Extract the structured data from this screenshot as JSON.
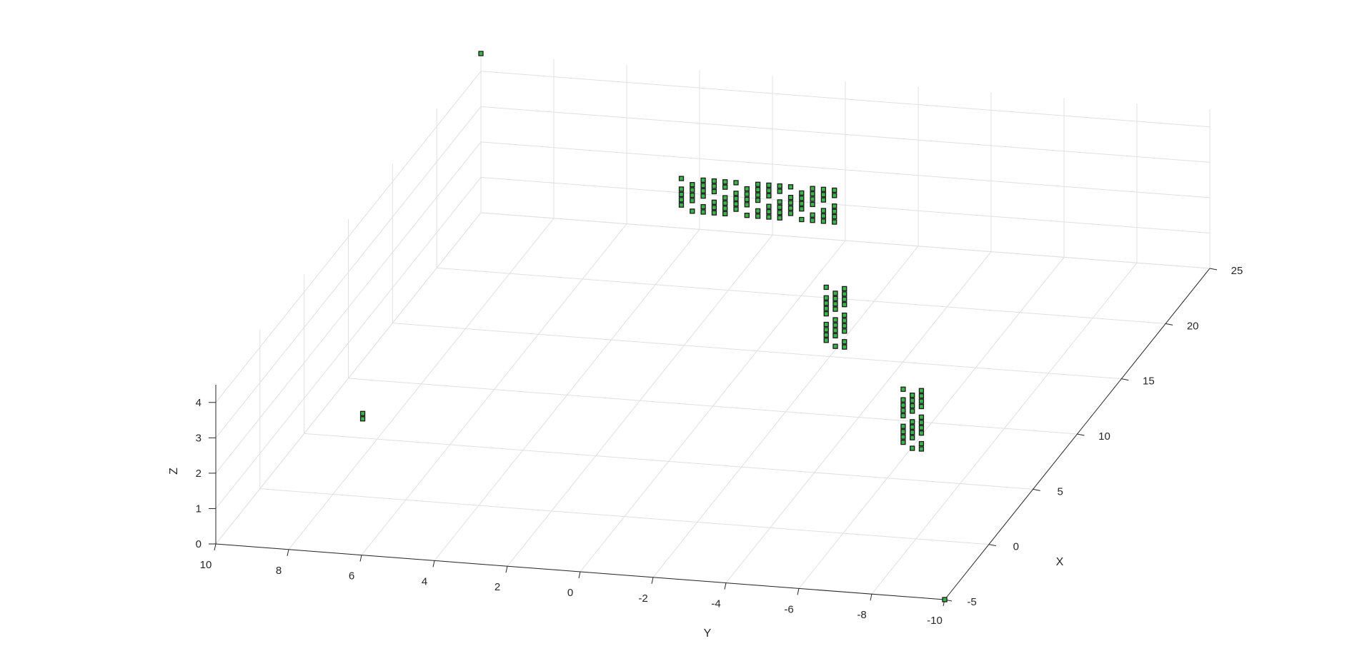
{
  "chart_data": {
    "type": "scatter",
    "subtype": "3d-voxel-scatter",
    "xlabel": "X",
    "ylabel": "Y",
    "zlabel": "Z",
    "xlim": [
      -5,
      25
    ],
    "ylim": [
      -10,
      10
    ],
    "zlim": [
      0,
      4.5
    ],
    "x_ticks": [
      "-5",
      "0",
      "5",
      "10",
      "15",
      "20",
      "25"
    ],
    "y_ticks": [
      "10",
      "8",
      "6",
      "4",
      "2",
      "0",
      "-2",
      "-4",
      "-6",
      "-8",
      "-10"
    ],
    "z_ticks": [
      "0",
      "1",
      "2",
      "3",
      "4"
    ],
    "grid": true,
    "marker": {
      "fill": "#3cb44b",
      "edge": "#1a1a1a",
      "shape": "square"
    },
    "clusters": [
      {
        "x": 25,
        "y": 4.5,
        "z": 0.5,
        "cols": [
          0,
          0.3,
          0.6,
          0.9,
          1.2,
          1.5,
          1.8,
          2.1,
          2.4,
          2.7,
          3.0,
          3.3,
          3.6,
          3.9,
          4.2
        ],
        "zmin": 0.0,
        "zmax": 0.9
      },
      {
        "x": 15,
        "y": -1.9,
        "z": 0.3,
        "cols": [
          0,
          0.25,
          0.5
        ],
        "zmin": 0.0,
        "zmax": 1.6
      },
      {
        "x": 6.8,
        "y": -6.0,
        "z": 0.3,
        "cols": [
          0,
          0.25,
          0.5
        ],
        "zmin": 0.0,
        "zmax": 1.6
      },
      {
        "x": 0.9,
        "y": 7.4,
        "z": 1.9,
        "cols": [
          0
        ],
        "zmin": 0.0,
        "zmax": 0.15
      }
    ],
    "isolated_points": [
      {
        "x": -5,
        "y": -10,
        "z": 0
      },
      {
        "x": 25,
        "y": 10,
        "z": 4.5
      }
    ]
  }
}
